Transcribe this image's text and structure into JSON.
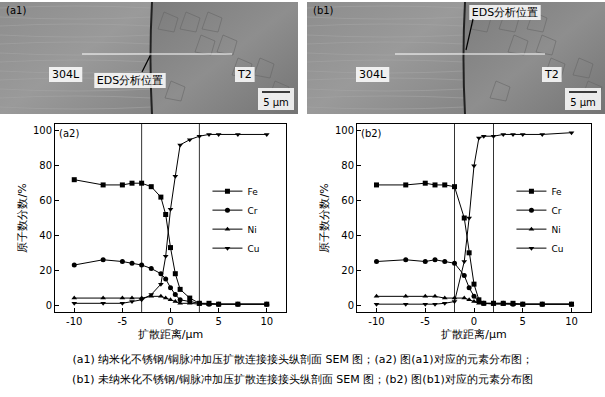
{
  "images": [
    {
      "label": "(a1)",
      "left_text": "304L",
      "right_text": "T2",
      "annotation": "EDS分析位置",
      "scale_bar": "5 μm"
    },
    {
      "label": "(b1)",
      "left_text": "304L",
      "right_text": "T2",
      "annotation": "EDS分析位置",
      "scale_bar": "5 μm"
    }
  ],
  "chart_data": [
    {
      "type": "line",
      "label": "(a2)",
      "x_label": "扩散距离/μm",
      "y_label": "原子数分数/%",
      "x": [
        -10,
        -7,
        -5,
        -4,
        -3,
        -2,
        -1,
        -0.5,
        0,
        0.5,
        1,
        2,
        3,
        4,
        5,
        7,
        10
      ],
      "xlim": [
        -12,
        12
      ],
      "xticks": [
        -10,
        -5,
        0,
        5,
        10
      ],
      "ylim": [
        -4,
        104
      ],
      "yticks": [
        0,
        20,
        40,
        60,
        80,
        100
      ],
      "boundaries": [
        -3,
        3
      ],
      "legend": "right",
      "grid": false,
      "series": [
        {
          "name": "Fe",
          "color": "#000000",
          "marker": "square",
          "line_style": "solid",
          "values": [
            72,
            69,
            69,
            70,
            70,
            68,
            62,
            52,
            33,
            18,
            9,
            4,
            1,
            1,
            0.5,
            0.5,
            0.5
          ]
        },
        {
          "name": "Cr",
          "color": "#000000",
          "marker": "circle",
          "line_style": "solid",
          "values": [
            23,
            26,
            25,
            24,
            23,
            21,
            18,
            15,
            10,
            6,
            3,
            2,
            1,
            0.5,
            0.5,
            0.5,
            0.5
          ]
        },
        {
          "name": "Ni",
          "color": "#000000",
          "marker": "triangle-up",
          "line_style": "solid",
          "values": [
            4,
            4,
            4,
            4,
            4,
            5,
            5,
            4,
            3,
            2,
            1,
            1,
            0.5,
            0.5,
            0.5,
            0.5,
            0.5
          ]
        },
        {
          "name": "Cu",
          "color": "#000000",
          "marker": "triangle-down",
          "line_style": "solid",
          "values": [
            1,
            1,
            1,
            2,
            3,
            6,
            12,
            28,
            55,
            74,
            92,
            95,
            97,
            98,
            98,
            98,
            98
          ]
        }
      ]
    },
    {
      "type": "line",
      "label": "(b2)",
      "x_label": "扩散距离/μm",
      "y_label": "原子数分数/%",
      "x": [
        -10,
        -7,
        -5,
        -4,
        -3,
        -2,
        -1,
        -0.5,
        0,
        0.5,
        1,
        2,
        3,
        4,
        5,
        7,
        10
      ],
      "xlim": [
        -12,
        12
      ],
      "xticks": [
        -10,
        -5,
        0,
        5,
        10
      ],
      "ylim": [
        -4,
        104
      ],
      "yticks": [
        0,
        20,
        40,
        60,
        80,
        100
      ],
      "boundaries": [
        -2,
        2
      ],
      "legend": "right",
      "grid": false,
      "series": [
        {
          "name": "Fe",
          "color": "#000000",
          "marker": "square",
          "line_style": "solid",
          "values": [
            69,
            69,
            70,
            69,
            69,
            68,
            50,
            30,
            12,
            3,
            1,
            1,
            1,
            1,
            0.5,
            0.5,
            0.5
          ]
        },
        {
          "name": "Cr",
          "color": "#000000",
          "marker": "circle",
          "line_style": "solid",
          "values": [
            25,
            26,
            25,
            26,
            25,
            24,
            17,
            10,
            5,
            2,
            1,
            1,
            1,
            0.5,
            0.5,
            0.5,
            0.5
          ]
        },
        {
          "name": "Ni",
          "color": "#000000",
          "marker": "triangle-up",
          "line_style": "solid",
          "values": [
            5,
            5,
            5,
            5,
            4,
            4,
            4,
            3,
            2,
            1,
            1,
            0.5,
            0.5,
            0.5,
            0.5,
            0.5,
            0.5
          ]
        },
        {
          "name": "Cu",
          "color": "#000000",
          "marker": "triangle-down",
          "line_style": "solid",
          "values": [
            0.5,
            0.5,
            0.5,
            0.5,
            1,
            2,
            25,
            50,
            80,
            96,
            97,
            97,
            98,
            98,
            98,
            98,
            99
          ]
        }
      ]
    }
  ],
  "caption": [
    "(a1) 纳米化不锈钢/铜脉冲加压扩散连接接头纵剖面 SEM 图；(a2) 图(a1)对应的元素分布图；",
    "(b1) 未纳米化不锈钢/铜脉冲加压扩散连接接头纵剖面 SEM 图；(b2) 图(b1)对应的元素分布图"
  ]
}
